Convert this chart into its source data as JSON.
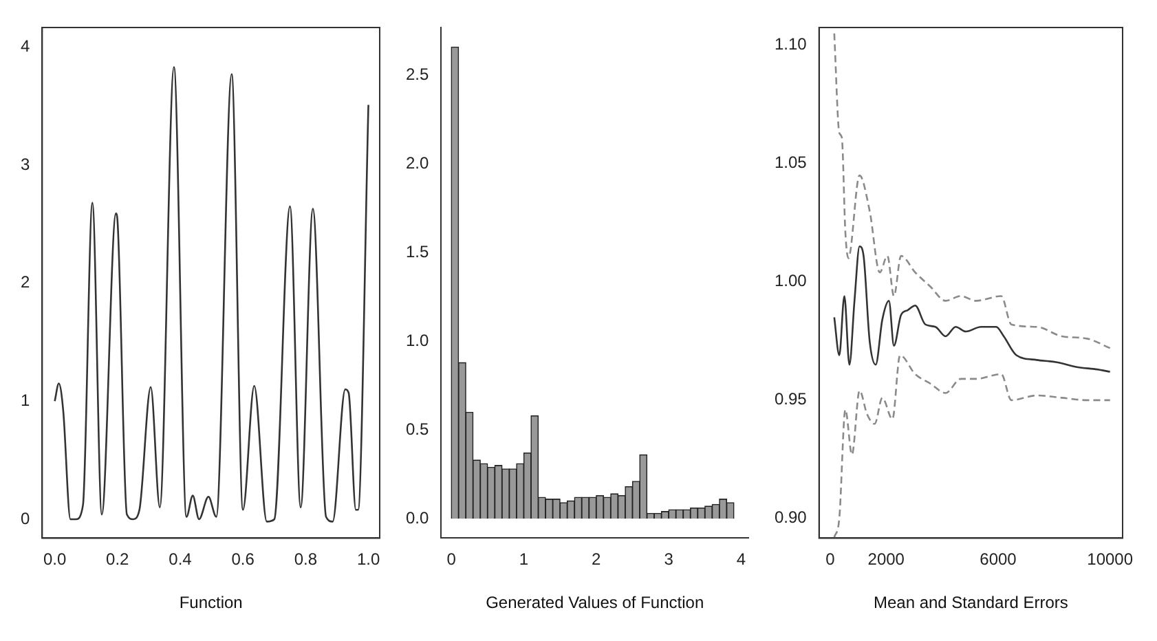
{
  "chart_data": [
    {
      "type": "line",
      "xlabel": "Function",
      "xlim": [
        -0.04,
        1.036
      ],
      "ylim": [
        -0.16,
        4.165
      ],
      "xticks": [
        {
          "value": 0,
          "label": "0.0"
        },
        {
          "value": 0.2,
          "label": "0.2"
        },
        {
          "value": 0.4,
          "label": "0.4"
        },
        {
          "value": 0.6,
          "label": "0.6"
        },
        {
          "value": 0.8,
          "label": "0.8"
        },
        {
          "value": 1,
          "label": "1.0"
        }
      ],
      "yticks": [
        0,
        1,
        2,
        3,
        4
      ],
      "grid": false,
      "legend": false,
      "marker": "none",
      "line_style": "solid",
      "series": [
        {
          "color": "#333333",
          "x": [
            0,
            0.013,
            0.027,
            0.05,
            0.068,
            0.09,
            0.12,
            0.15,
            0.195,
            0.2,
            0.23,
            0.25,
            0.27,
            0.306,
            0.335,
            0.38,
            0.42,
            0.44,
            0.46,
            0.49,
            0.515,
            0.564,
            0.6,
            0.636,
            0.676,
            0.7,
            0.75,
            0.784,
            0.823,
            0.865,
            0.886,
            0.926,
            0.937,
            0.96,
            0.967,
            1.0
          ],
          "values": [
            1.0,
            1.15,
            0.92,
            0,
            0,
            0.12,
            2.68,
            0.04,
            2.59,
            2.53,
            0.04,
            0,
            0.08,
            1.12,
            0.1,
            3.83,
            0.02,
            0.2,
            0,
            0.19,
            0.02,
            3.77,
            0.08,
            1.13,
            -0.02,
            0,
            2.65,
            0.1,
            2.63,
            0.02,
            -0.02,
            1.1,
            1.07,
            0.08,
            0.08,
            3.51
          ]
        }
      ]
    },
    {
      "type": "histogram",
      "xlabel": "Generated Values of Function",
      "xlim": [
        -0.14,
        4.1
      ],
      "ylim": [
        -0.11,
        2.77
      ],
      "xticks": [
        0,
        1,
        2,
        3,
        4
      ],
      "yticks": [
        {
          "value": 0,
          "label": "0.0"
        },
        {
          "value": 0.5,
          "label": "0.5"
        },
        {
          "value": 1,
          "label": "1.0"
        },
        {
          "value": 1.5,
          "label": "1.5"
        },
        {
          "value": 2,
          "label": "2.0"
        },
        {
          "value": 2.5,
          "label": "2.5"
        }
      ],
      "grid": false,
      "legend": false,
      "color": "#999999",
      "bins": [
        0,
        0.1,
        0.2,
        0.3,
        0.4,
        0.5,
        0.6,
        0.7,
        0.8,
        0.9,
        1.0,
        1.1,
        1.2,
        1.3,
        1.4,
        1.5,
        1.6,
        1.7,
        1.8,
        1.9,
        2.0,
        2.1,
        2.2,
        2.3,
        2.4,
        2.5,
        2.6,
        2.7,
        2.8,
        2.9,
        3.0,
        3.1,
        3.2,
        3.3,
        3.4,
        3.5,
        3.6,
        3.7,
        3.8,
        3.9
      ],
      "values": [
        2.66,
        0.88,
        0.6,
        0.33,
        0.31,
        0.29,
        0.3,
        0.28,
        0.28,
        0.31,
        0.37,
        0.58,
        0.12,
        0.11,
        0.11,
        0.09,
        0.1,
        0.12,
        0.12,
        0.12,
        0.13,
        0.12,
        0.14,
        0.13,
        0.18,
        0.21,
        0.36,
        0.03,
        0.03,
        0.04,
        0.05,
        0.05,
        0.05,
        0.06,
        0.06,
        0.07,
        0.08,
        0.11,
        0.09
      ]
    },
    {
      "type": "line",
      "xlabel": "Mean and Standard Errors",
      "xlim": [
        -398,
        10450
      ],
      "ylim": [
        0.8917,
        1.1075
      ],
      "xticks": [
        0,
        2000,
        6000,
        10000
      ],
      "yticks": [
        {
          "value": 0.9,
          "label": "0.90"
        },
        {
          "value": 0.95,
          "label": "0.95"
        },
        {
          "value": 1,
          "label": "1.00"
        },
        {
          "value": 1.05,
          "label": "1.05"
        },
        {
          "value": 1.1,
          "label": "1.10"
        }
      ],
      "grid": false,
      "legend": false,
      "marker": "none",
      "series": [
        {
          "color": "#8a8a8a",
          "line_style": "dashed",
          "x": [
            145,
            325,
            416,
            542,
            651,
            1049,
            1410,
            1772,
            2043,
            2278,
            2532,
            3038,
            3580,
            4123,
            4666,
            5208,
            6113,
            6474,
            7378,
            8282,
            9186,
            10000
          ],
          "values": [
            1.105,
            1.063,
            1.061,
            1.021,
            1.01,
            1.045,
            1.03,
            1.004,
            1.011,
            0.994,
            1.011,
            1.004,
            0.998,
            0.992,
            0.994,
            0.992,
            0.994,
            0.982,
            0.981,
            0.977,
            0.976,
            0.972
          ]
        },
        {
          "color": "#8a8a8a",
          "line_style": "dashed",
          "x": [
            145,
            325,
            542,
            777,
            1049,
            1320,
            1591,
            1862,
            2224,
            2496,
            3038,
            3580,
            4123,
            4666,
            5208,
            6113,
            6474,
            7378,
            8282,
            9186,
            10000
          ],
          "values": [
            0.892,
            0.9,
            0.946,
            0.927,
            0.954,
            0.944,
            0.94,
            0.951,
            0.942,
            0.969,
            0.961,
            0.957,
            0.953,
            0.959,
            0.959,
            0.961,
            0.95,
            0.952,
            0.951,
            0.95,
            0.95
          ]
        },
        {
          "color": "#333333",
          "line_style": "solid",
          "x": [
            145,
            325,
            506,
            687,
            868,
            1049,
            1193,
            1410,
            1627,
            1862,
            2098,
            2278,
            2532,
            2767,
            3038,
            3400,
            3761,
            4123,
            4485,
            4846,
            5389,
            5931,
            6203,
            6655,
            7378,
            8101,
            8825,
            9548,
            10000
          ],
          "values": [
            0.985,
            0.969,
            0.994,
            0.965,
            0.992,
            1.015,
            1.011,
            0.975,
            0.965,
            0.984,
            0.992,
            0.973,
            0.986,
            0.988,
            0.99,
            0.982,
            0.981,
            0.977,
            0.981,
            0.979,
            0.981,
            0.981,
            0.977,
            0.969,
            0.967,
            0.966,
            0.964,
            0.963,
            0.962
          ]
        }
      ]
    }
  ]
}
